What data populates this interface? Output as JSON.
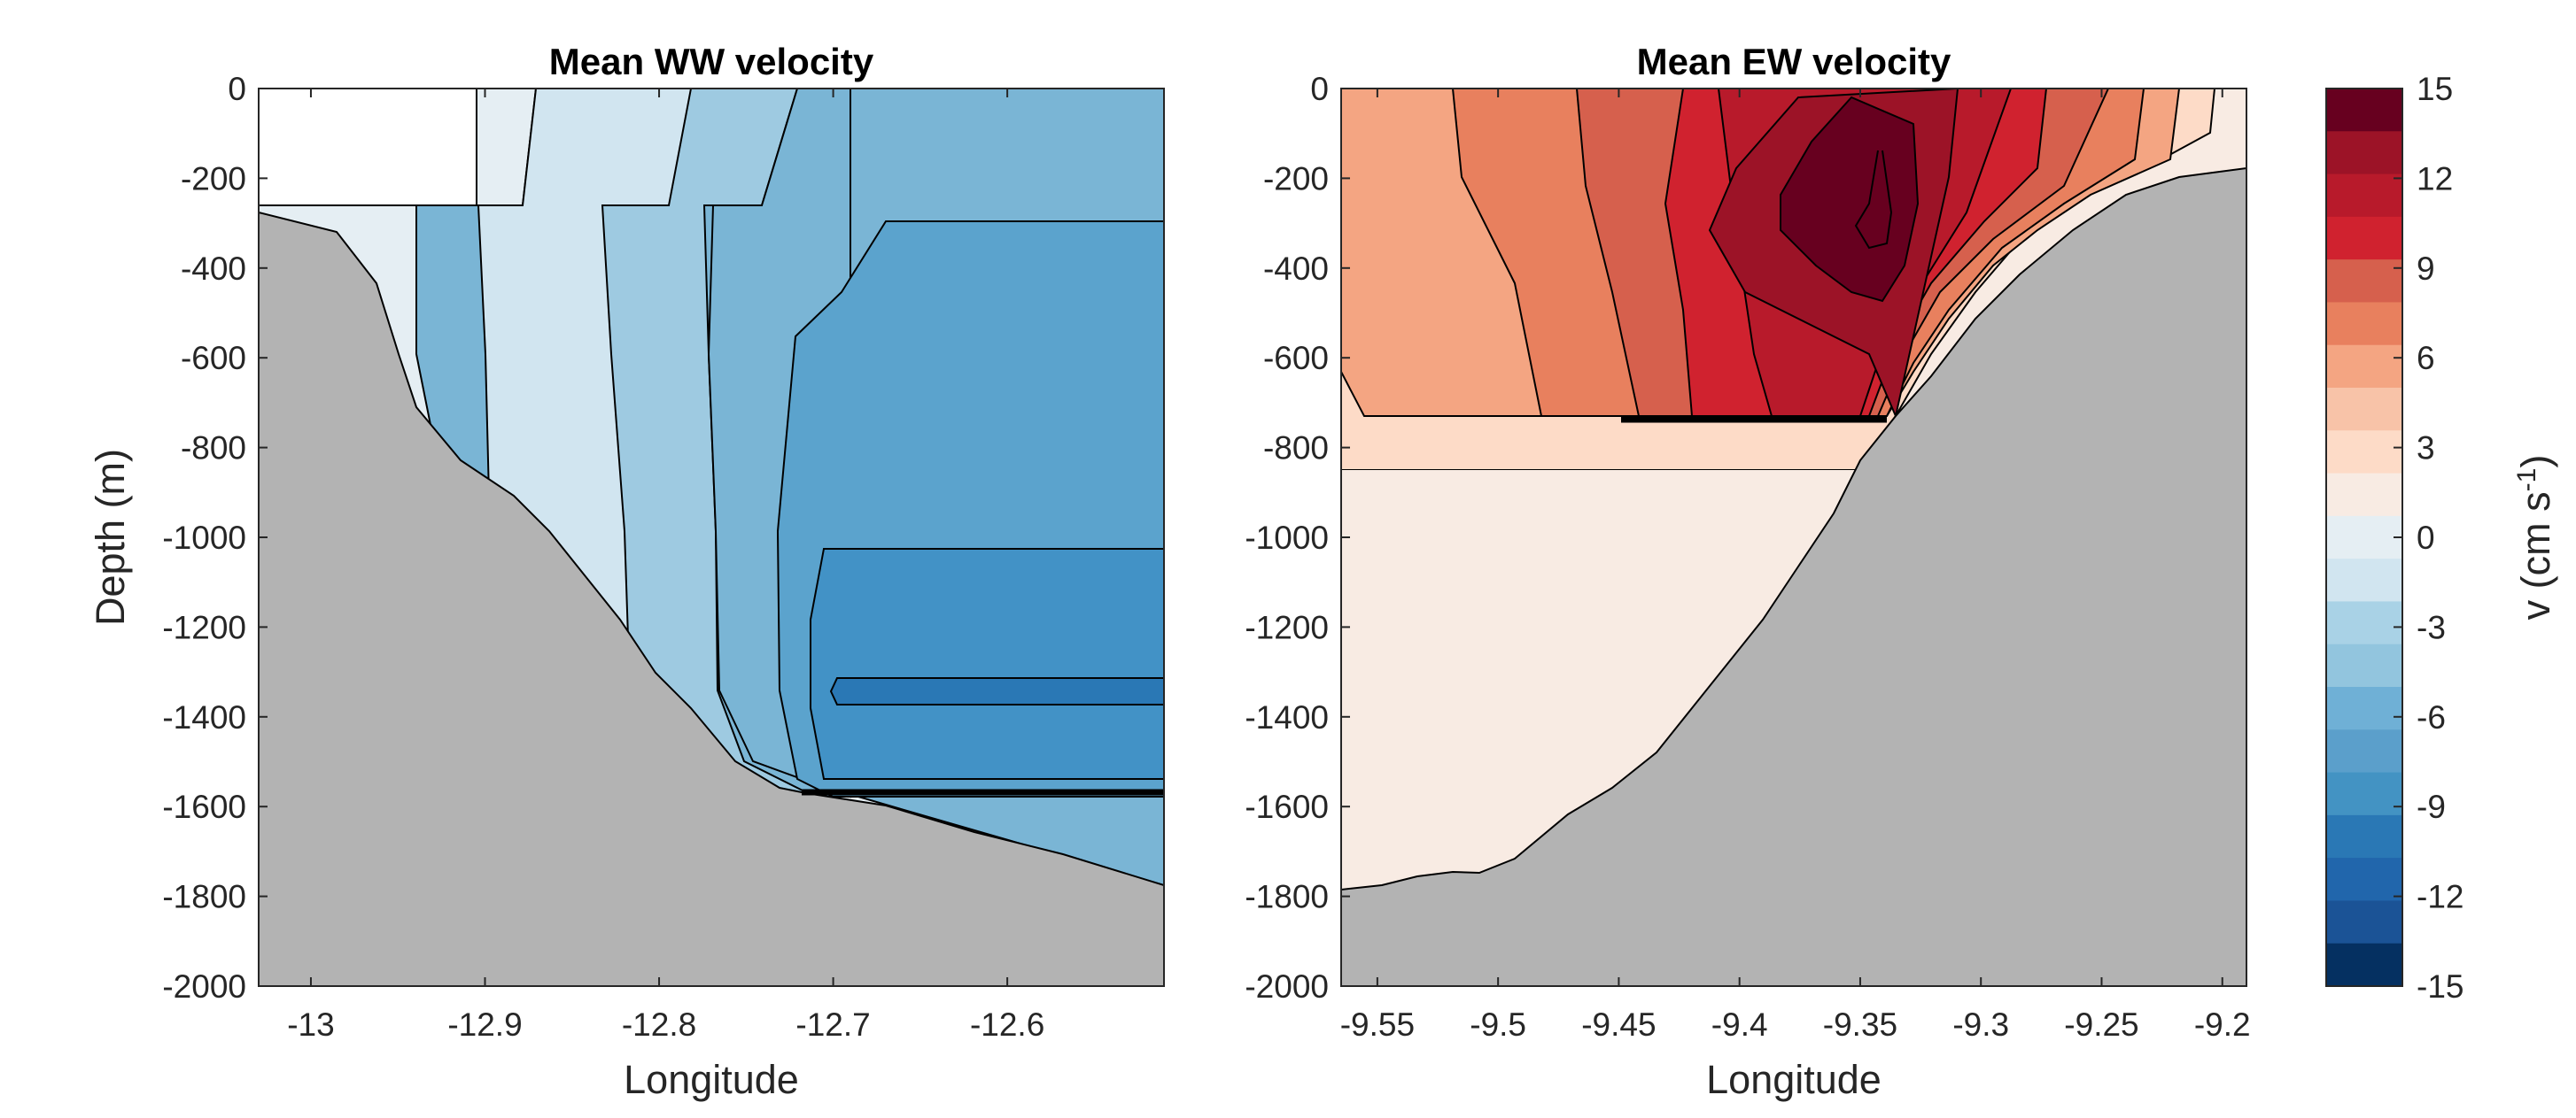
{
  "chart_data": [
    {
      "type": "contour",
      "title": "Mean WW velocity",
      "xlabel": "Longitude",
      "ylabel": "Depth (m)",
      "xlim": [
        -13.03,
        -12.51
      ],
      "ylim": [
        -2000,
        0
      ],
      "xticks": [
        -13,
        -12.9,
        -12.8,
        -12.7,
        -12.6
      ],
      "xtick_labels": [
        "-13",
        "-12.9",
        "-12.8",
        "-12.7",
        "-12.6"
      ],
      "yticks": [
        0,
        -200,
        -400,
        -600,
        -800,
        -1000,
        -1200,
        -1400,
        -1600,
        -1800,
        -2000
      ],
      "ytick_labels": [
        "0",
        "-200",
        "-400",
        "-600",
        "-800",
        "-1000",
        "-1200",
        "-1400",
        "-1600",
        "-1800",
        "-2000"
      ],
      "bathymetry": {
        "lon": [
          -13.03,
          -13.0,
          -12.98,
          -12.96,
          -12.94,
          -12.92,
          -12.9,
          -12.88,
          -12.86,
          -12.84,
          -12.82,
          -12.8,
          -12.78,
          -12.76,
          -12.74,
          -12.72,
          -12.7,
          -12.68,
          -12.66,
          -12.64,
          -12.62,
          -12.6,
          -12.58,
          -12.56,
          -12.54,
          -12.51
        ],
        "depth": [
          -280,
          -305,
          -340,
          -450,
          -620,
          -790,
          -880,
          -960,
          -1050,
          -1150,
          -1290,
          -1380,
          -1460,
          -1540,
          -1580,
          -1600,
          -1615,
          -1630,
          -1650,
          -1670,
          -1690,
          -1705,
          -1725,
          -1745,
          -1760,
          -1780
        ]
      },
      "filled_regions": [
        {
          "v_range": "no data",
          "lon_range": [
            -13.03,
            -12.9
          ],
          "depth_range": [
            0,
            -260
          ]
        },
        {
          "v_range": [
            -1.5,
            0
          ],
          "lon_range": [
            -12.9,
            -12.84
          ]
        },
        {
          "v_range": [
            -3,
            -1.5
          ],
          "lon_range": [
            -12.84,
            -12.78
          ]
        },
        {
          "v_range": [
            -4.5,
            -3
          ],
          "lon_range": [
            -12.78,
            -12.74
          ]
        },
        {
          "v_range": [
            -6,
            -4.5
          ],
          "lon_range": [
            -12.74,
            -12.69
          ]
        },
        {
          "v_range": [
            -7.5,
            -6
          ],
          "lon_range": [
            -12.69,
            -12.51
          ],
          "depth_range": [
            -300,
            -1030
          ]
        },
        {
          "v_range": [
            -9,
            -7.5
          ],
          "lon_range": [
            -12.68,
            -12.51
          ],
          "depth_range": [
            -1030,
            -1545
          ]
        },
        {
          "v_range": [
            -10.5,
            -9
          ],
          "lon_range": [
            -12.68,
            -12.51
          ],
          "depth_range": [
            -1315,
            -1370
          ]
        }
      ]
    },
    {
      "type": "contour",
      "title": "Mean EW velocity",
      "xlabel": "Longitude",
      "ylabel": "",
      "xlim": [
        -9.565,
        -9.19
      ],
      "ylim": [
        -2000,
        0
      ],
      "xticks": [
        -9.55,
        -9.5,
        -9.45,
        -9.4,
        -9.35,
        -9.3,
        -9.25,
        -9.2
      ],
      "xtick_labels": [
        "-9.55",
        "-9.5",
        "-9.45",
        "-9.4",
        "-9.35",
        "-9.3",
        "-9.25",
        "-9.2"
      ],
      "yticks": [
        0,
        -200,
        -400,
        -600,
        -800,
        -1000,
        -1200,
        -1400,
        -1600,
        -1800,
        -2000
      ],
      "ytick_labels": [
        "0",
        "-200",
        "-400",
        "-600",
        "-800",
        "-1000",
        "-1200",
        "-1400",
        "-1600",
        "-1800",
        "-2000"
      ],
      "bathymetry": {
        "lon": [
          -9.565,
          -9.54,
          -9.52,
          -9.51,
          -9.5,
          -9.48,
          -9.46,
          -9.44,
          -9.42,
          -9.4,
          -9.38,
          -9.36,
          -9.35,
          -9.34,
          -9.33,
          -9.32,
          -9.31,
          -9.3,
          -9.28,
          -9.26,
          -9.24,
          -9.22,
          -9.2,
          -9.19
        ],
        "depth": [
          -1790,
          -1770,
          -1740,
          -1740,
          -1745,
          -1700,
          -1600,
          -1560,
          -1480,
          -1380,
          -1220,
          -1060,
          -920,
          -800,
          -730,
          -660,
          -590,
          -520,
          -430,
          -350,
          -290,
          -240,
          -200,
          -190
        ]
      },
      "filled_regions": [
        {
          "v_range": [
            13.5,
            15
          ],
          "lon_range": [
            -9.37,
            -9.33
          ],
          "depth_range": [
            -40,
            -360
          ]
        },
        {
          "v_range": [
            12,
            13.5
          ],
          "lon_range": [
            -9.41,
            -9.32
          ],
          "depth_range": [
            0,
            -740
          ]
        },
        {
          "v_range": [
            10.5,
            12
          ],
          "lon_range": [
            -9.45,
            -9.31
          ],
          "depth_range": [
            0,
            -740
          ]
        },
        {
          "v_range": [
            9,
            10.5
          ],
          "lon_range": [
            -9.48,
            -9.3
          ],
          "depth_range": [
            0,
            -740
          ]
        },
        {
          "v_range": [
            7.5,
            9
          ],
          "lon_range": [
            -9.51,
            -9.28
          ],
          "depth_range": [
            0,
            -740
          ]
        },
        {
          "v_range": [
            6,
            7.5
          ],
          "lon_range": [
            -9.54,
            -9.26
          ],
          "depth_range": [
            0,
            -740
          ]
        },
        {
          "v_range": [
            4.5,
            6
          ],
          "lon_range": [
            -9.565,
            -9.24
          ],
          "depth_range": [
            0,
            -740
          ]
        },
        {
          "v_range": [
            3,
            4.5
          ],
          "lon_range": [
            -9.565,
            -9.22
          ],
          "depth_range": [
            -600,
            -740
          ]
        },
        {
          "v_range": [
            1.5,
            3
          ],
          "lon_range": [
            -9.565,
            -9.21
          ],
          "depth_range": [
            -740,
            -850
          ]
        },
        {
          "v_range": [
            0,
            1.5
          ],
          "lon_range": [
            -9.565,
            -9.19
          ],
          "depth_range": [
            -850,
            -1790
          ]
        }
      ]
    }
  ],
  "colorbar": {
    "label": "v (cm s",
    "label_superscript": "-1",
    "label_suffix": ")",
    "range": [
      -15,
      15
    ],
    "ticks": [
      15,
      12,
      9,
      6,
      3,
      0,
      -3,
      -6,
      -9,
      -12,
      -15
    ],
    "tick_labels": [
      "15",
      "12",
      "9",
      "6",
      "3",
      "0",
      "-3",
      "-6",
      "-9",
      "-12",
      "-15"
    ],
    "colors_top_to_bottom": [
      "#67001f",
      "#9c1327",
      "#b81a2b",
      "#d0222f",
      "#d6604d",
      "#e8805e",
      "#f4a582",
      "#f8c3a8",
      "#fddbc7",
      "#f8ebe3",
      "#e5eef3",
      "#d1e5f0",
      "#a9d2e6",
      "#92c5de",
      "#6fb0d6",
      "#5b9fcb",
      "#4393c3",
      "#2a78b5",
      "#2166ac",
      "#1b5396",
      "#053061"
    ]
  },
  "colors": {
    "terrain": "#b3b3b3",
    "no_data": "#ffffff",
    "contour_line": "#000000",
    "neg": [
      "#e5eef3",
      "#d1e5f0",
      "#9ecae1",
      "#7ab5d5",
      "#5ba3cd",
      "#4292c6",
      "#2a78b5"
    ],
    "pos": [
      "#f8ebe3",
      "#fddbc7",
      "#f4a582",
      "#e8805e",
      "#d6604d",
      "#d0222f",
      "#b81a2b",
      "#9c1327",
      "#67001f"
    ]
  }
}
